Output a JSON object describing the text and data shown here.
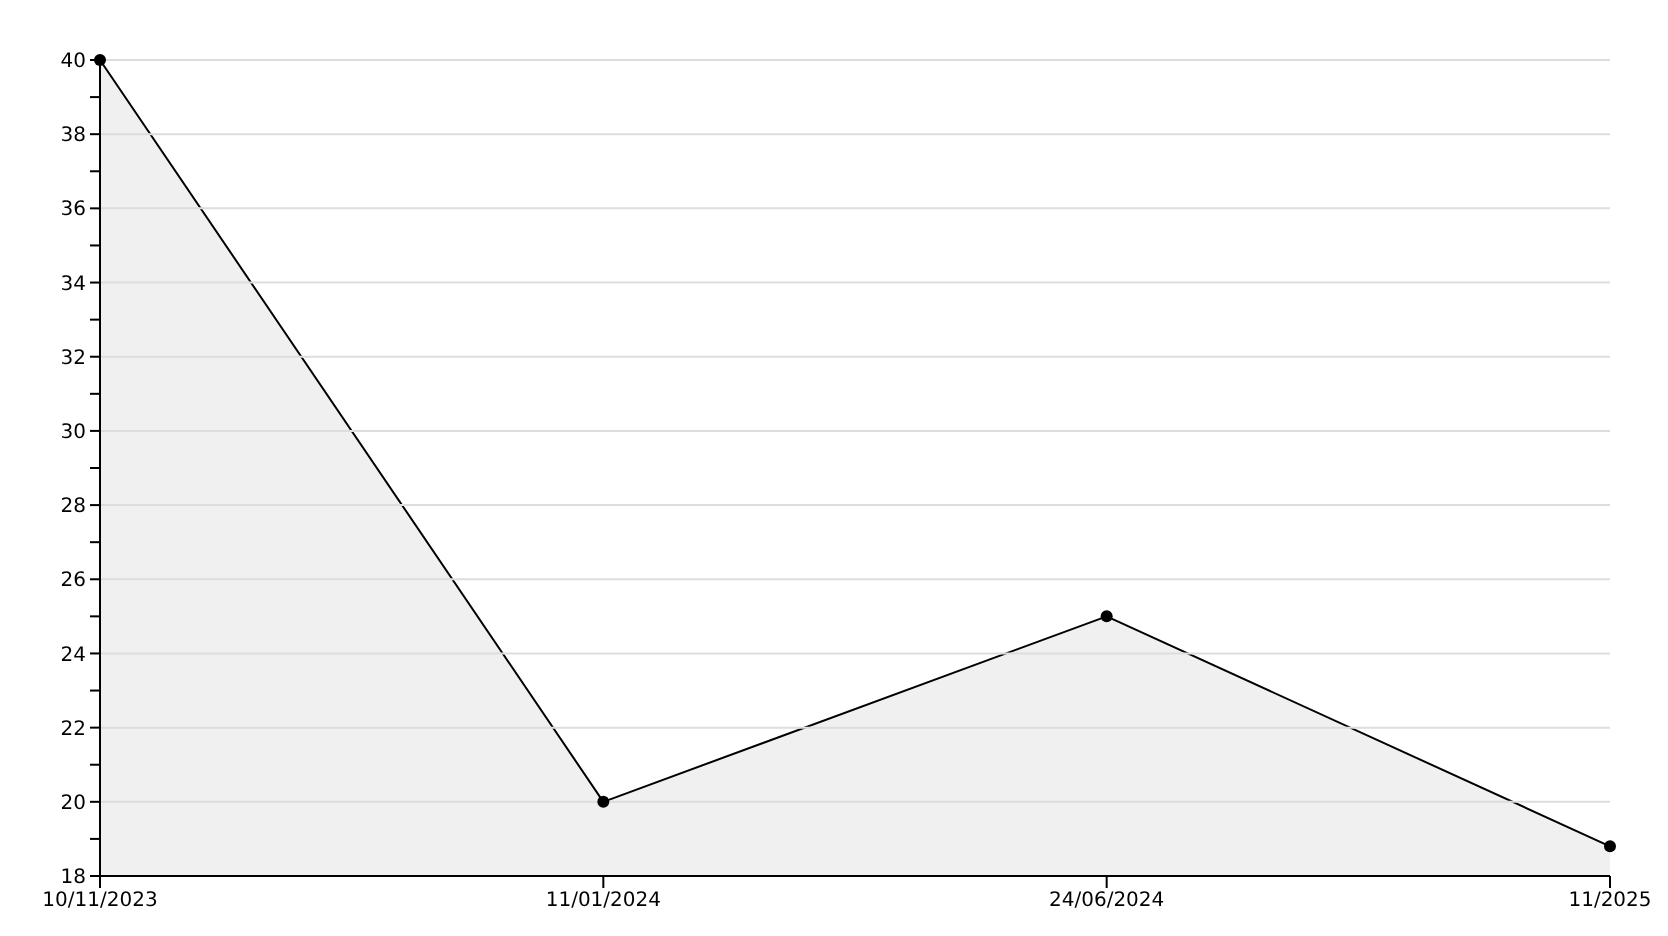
{
  "chart_data": {
    "type": "area",
    "categories": [
      "10/11/2023",
      "11/01/2024",
      "24/06/2024",
      "11/2025"
    ],
    "series": [
      {
        "color": "#000000",
        "values": [
          40,
          20,
          25,
          18.8
        ]
      }
    ],
    "ylim": [
      18,
      40
    ],
    "yticks": [
      18,
      {
        "value": 19,
        "label": null
      },
      20,
      {
        "value": 21,
        "label": null
      },
      22,
      {
        "value": 23,
        "label": null
      },
      24,
      {
        "value": 25,
        "label": null
      },
      26,
      {
        "value": 27,
        "label": null
      },
      28,
      {
        "value": 29,
        "label": null
      },
      30,
      {
        "value": 31,
        "label": null
      },
      32,
      {
        "value": 33,
        "label": null
      },
      34,
      {
        "value": 35,
        "label": null
      },
      36,
      {
        "value": 37,
        "label": null
      },
      38,
      {
        "value": 39,
        "label": null
      },
      40
    ],
    "grid": "y",
    "marker": "circle",
    "line_style": "solid"
  }
}
